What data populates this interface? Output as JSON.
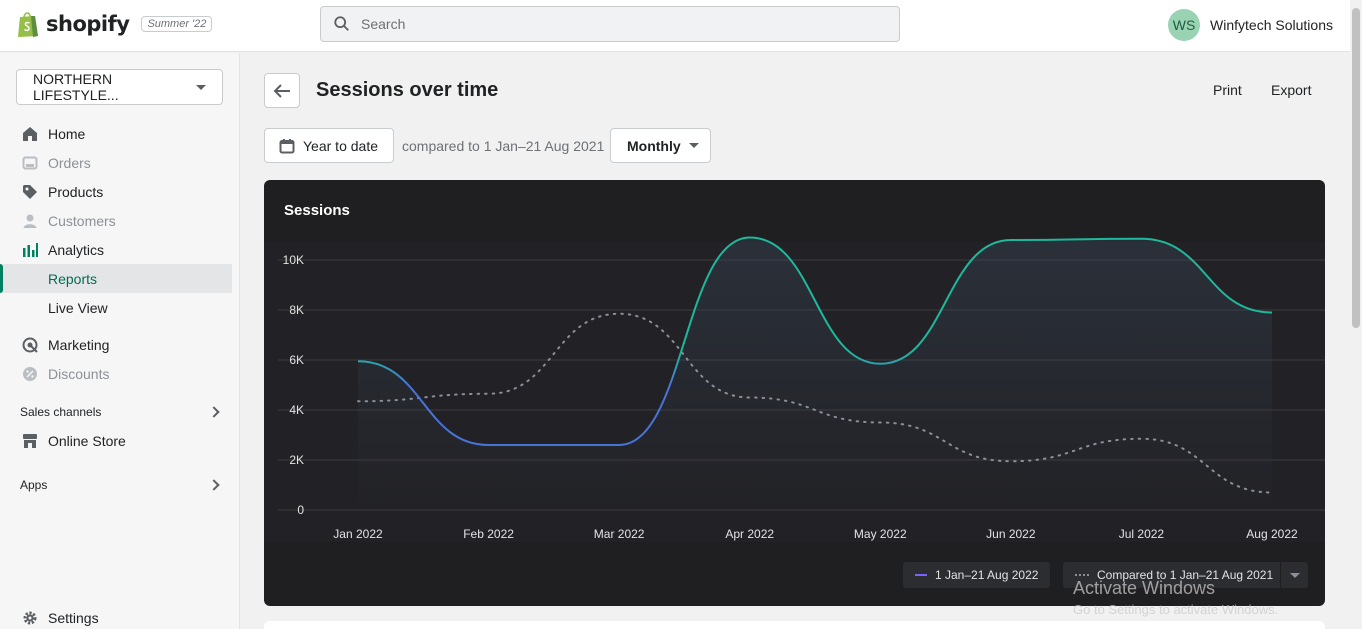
{
  "brand": {
    "name": "shopify",
    "edition": "Summer '22"
  },
  "search": {
    "placeholder": "Search"
  },
  "account": {
    "initials": "WS",
    "name": "Winfytech Solutions"
  },
  "store": {
    "name": "NORTHERN LIFESTYLE..."
  },
  "nav": {
    "home": "Home",
    "orders": "Orders",
    "products": "Products",
    "customers": "Customers",
    "analytics": "Analytics",
    "reports": "Reports",
    "live_view": "Live View",
    "marketing": "Marketing",
    "discounts": "Discounts",
    "sales_channels": "Sales channels",
    "online_store": "Online Store",
    "apps": "Apps",
    "settings": "Settings"
  },
  "page": {
    "title": "Sessions over time",
    "print": "Print",
    "export": "Export",
    "date_range": "Year to date",
    "compare_text": "compared to 1 Jan–21 Aug 2021",
    "granularity": "Monthly"
  },
  "chart_data": {
    "type": "line",
    "title": "Sessions",
    "x": [
      "Jan 2022",
      "Feb 2022",
      "Mar 2022",
      "Apr 2022",
      "May 2022",
      "Jun 2022",
      "Jul 2022",
      "Aug 2022"
    ],
    "y_ticks": [
      "0",
      "2K",
      "4K",
      "6K",
      "8K",
      "10K"
    ],
    "ylim": [
      0,
      11000
    ],
    "grid": true,
    "legend": "bottom-right",
    "series": [
      {
        "name": "1 Jan–21 Aug 2022",
        "values": [
          5950,
          2600,
          2600,
          10900,
          5850,
          10800,
          10850,
          7900
        ],
        "style": "solid"
      },
      {
        "name": "Compared to 1 Jan–21 Aug 2021",
        "values": [
          4350,
          4650,
          7850,
          4500,
          3500,
          1950,
          2850,
          700
        ],
        "style": "dotted"
      }
    ],
    "colors": {
      "line_low": "#4a73d8",
      "line_high": "#1eb89a",
      "comparison": "#8c8f99",
      "background": "#1f1f22",
      "grid": "#3a3b40"
    }
  },
  "watermark": {
    "line1": "Activate Windows",
    "line2": "Go to Settings to activate Windows."
  }
}
